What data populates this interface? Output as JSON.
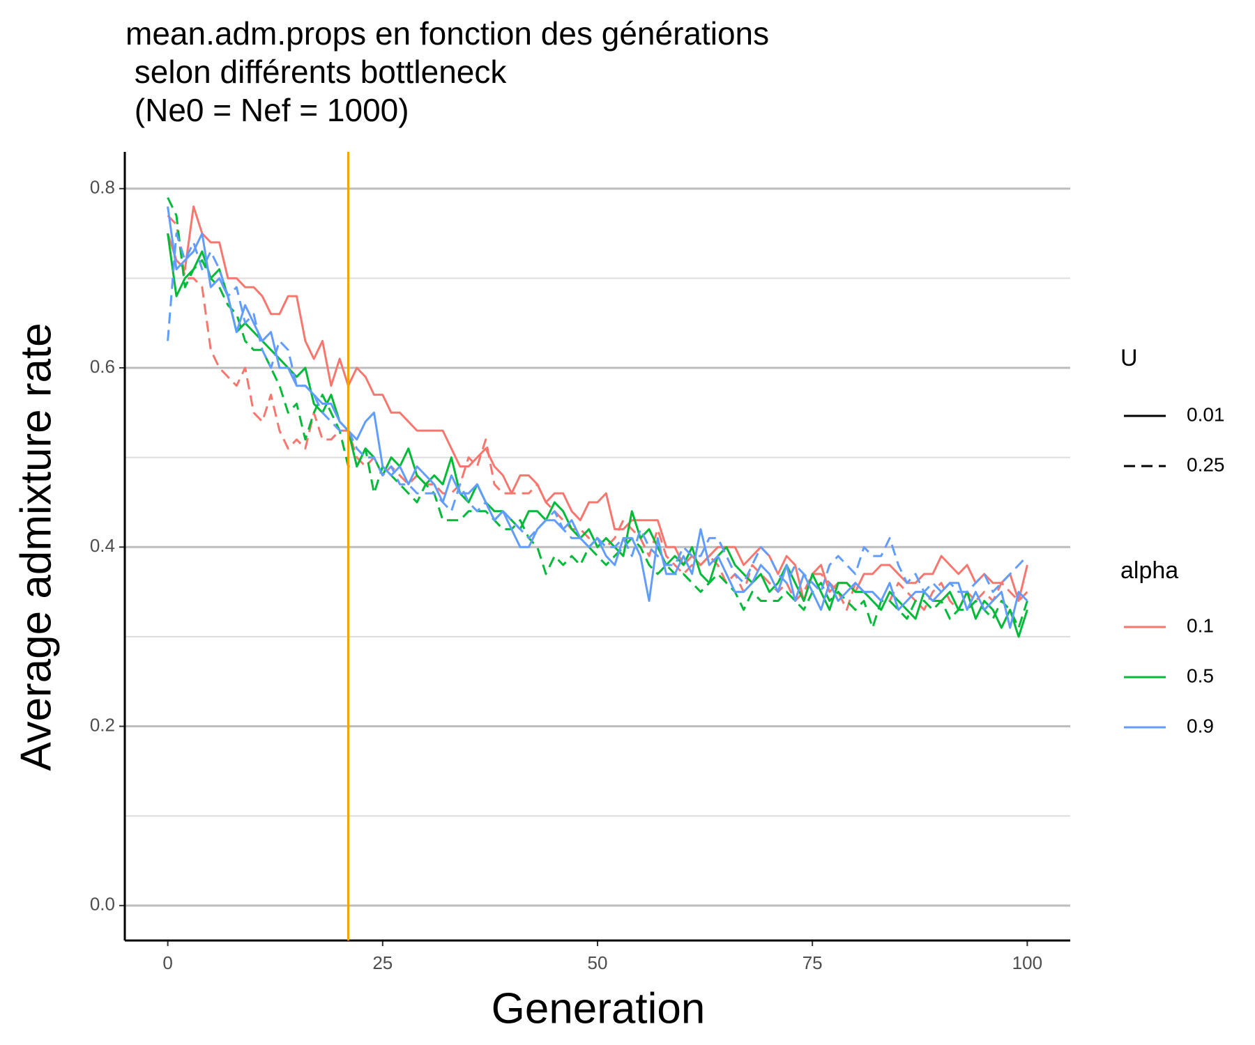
{
  "chart_data": {
    "type": "line",
    "title": [
      "mean.adm.props en fonction des générations",
      " selon différents bottleneck",
      " (Ne0 = Nef = 1000)"
    ],
    "x_label": "Generation",
    "y_label": "Average admixture rate",
    "xlim": [
      -5,
      105
    ],
    "xticks": [
      0,
      25,
      50,
      75,
      100
    ],
    "ylim": [
      -0.039,
      0.841
    ],
    "yticks": [
      {
        "value": 0,
        "label": "0.0"
      },
      0.2,
      0.4,
      0.6,
      0.8
    ],
    "yminor": [
      0.1,
      0.3,
      0.5,
      0.7
    ],
    "grid": true,
    "vline": 21,
    "vline_color": "#f5a300",
    "legend": [
      {
        "title": "U",
        "items": [
          "0.01",
          "0.25"
        ],
        "dashed": [
          false,
          true
        ],
        "color": "#000000"
      },
      {
        "title": "alpha",
        "items": [
          "0.1",
          "0.5",
          "0.9"
        ],
        "colors": [
          "#F8766D",
          "#00BA38",
          "#619CFF"
        ]
      }
    ],
    "x": [
      0,
      1,
      2,
      3,
      4,
      5,
      6,
      7,
      8,
      9,
      10,
      11,
      12,
      13,
      14,
      15,
      16,
      17,
      18,
      19,
      20,
      21,
      22,
      23,
      24,
      25,
      26,
      27,
      28,
      29,
      30,
      31,
      32,
      33,
      34,
      35,
      36,
      37,
      38,
      39,
      40,
      41,
      42,
      43,
      44,
      45,
      46,
      47,
      48,
      49,
      50,
      51,
      52,
      53,
      54,
      55,
      56,
      57,
      58,
      59,
      60,
      61,
      62,
      63,
      64,
      65,
      66,
      67,
      68,
      69,
      70,
      71,
      72,
      73,
      74,
      75,
      76,
      77,
      78,
      79,
      80,
      81,
      82,
      83,
      84,
      85,
      86,
      87,
      88,
      89,
      90,
      91,
      92,
      93,
      94,
      95,
      96,
      97,
      98,
      99,
      100
    ],
    "series": [
      {
        "color": "#F8766D",
        "dashed": false,
        "values": [
          0.75,
          0.72,
          0.71,
          0.78,
          0.75,
          0.74,
          0.74,
          0.7,
          0.7,
          0.69,
          0.69,
          0.68,
          0.66,
          0.66,
          0.68,
          0.68,
          0.63,
          0.61,
          0.63,
          0.58,
          0.61,
          0.58,
          0.6,
          0.59,
          0.57,
          0.57,
          0.55,
          0.55,
          0.54,
          0.53,
          0.53,
          0.53,
          0.53,
          0.51,
          0.49,
          0.49,
          0.5,
          0.51,
          0.49,
          0.48,
          0.46,
          0.48,
          0.48,
          0.47,
          0.45,
          0.46,
          0.46,
          0.44,
          0.43,
          0.45,
          0.45,
          0.46,
          0.42,
          0.42,
          0.43,
          0.43,
          0.43,
          0.43,
          0.4,
          0.4,
          0.38,
          0.39,
          0.38,
          0.39,
          0.4,
          0.4,
          0.4,
          0.38,
          0.39,
          0.4,
          0.39,
          0.37,
          0.39,
          0.38,
          0.34,
          0.37,
          0.38,
          0.35,
          0.36,
          0.36,
          0.35,
          0.37,
          0.37,
          0.38,
          0.38,
          0.37,
          0.36,
          0.36,
          0.37,
          0.37,
          0.39,
          0.38,
          0.37,
          0.38,
          0.36,
          0.37,
          0.36,
          0.36,
          0.37,
          0.34,
          0.38
        ]
      },
      {
        "color": "#F8766D",
        "dashed": true,
        "values": [
          0.77,
          0.76,
          0.7,
          0.7,
          0.69,
          0.62,
          0.6,
          0.59,
          0.58,
          0.6,
          0.55,
          0.54,
          0.57,
          0.53,
          0.51,
          0.52,
          0.51,
          0.55,
          0.52,
          0.52,
          0.53,
          0.53,
          0.5,
          0.49,
          0.5,
          0.48,
          0.49,
          0.48,
          0.47,
          0.48,
          0.47,
          0.47,
          0.46,
          0.46,
          0.47,
          0.5,
          0.49,
          0.52,
          0.47,
          0.46,
          0.46,
          0.46,
          0.46,
          0.47,
          0.45,
          0.44,
          0.43,
          0.42,
          0.42,
          0.41,
          0.41,
          0.4,
          0.41,
          0.43,
          0.42,
          0.41,
          0.39,
          0.42,
          0.39,
          0.38,
          0.37,
          0.38,
          0.38,
          0.39,
          0.38,
          0.36,
          0.37,
          0.35,
          0.38,
          0.37,
          0.36,
          0.35,
          0.36,
          0.34,
          0.35,
          0.37,
          0.37,
          0.36,
          0.35,
          0.33,
          0.36,
          0.35,
          0.35,
          0.34,
          0.34,
          0.36,
          0.35,
          0.34,
          0.33,
          0.35,
          0.36,
          0.34,
          0.33,
          0.35,
          0.34,
          0.35,
          0.34,
          0.36,
          0.35,
          0.34,
          0.35
        ]
      },
      {
        "color": "#00BA38",
        "dashed": false,
        "values": [
          0.75,
          0.68,
          0.7,
          0.71,
          0.73,
          0.7,
          0.71,
          0.68,
          0.64,
          0.65,
          0.64,
          0.63,
          0.62,
          0.61,
          0.6,
          0.59,
          0.6,
          0.56,
          0.55,
          0.57,
          0.54,
          0.53,
          0.49,
          0.51,
          0.5,
          0.48,
          0.5,
          0.49,
          0.51,
          0.48,
          0.47,
          0.48,
          0.47,
          0.5,
          0.46,
          0.45,
          0.47,
          0.45,
          0.44,
          0.44,
          0.43,
          0.42,
          0.44,
          0.44,
          0.43,
          0.45,
          0.44,
          0.42,
          0.41,
          0.42,
          0.4,
          0.41,
          0.4,
          0.39,
          0.44,
          0.41,
          0.42,
          0.4,
          0.38,
          0.39,
          0.38,
          0.4,
          0.37,
          0.36,
          0.39,
          0.4,
          0.38,
          0.37,
          0.36,
          0.37,
          0.35,
          0.36,
          0.38,
          0.36,
          0.34,
          0.37,
          0.35,
          0.33,
          0.36,
          0.36,
          0.35,
          0.35,
          0.34,
          0.33,
          0.35,
          0.34,
          0.33,
          0.32,
          0.35,
          0.34,
          0.34,
          0.35,
          0.33,
          0.35,
          0.32,
          0.34,
          0.33,
          0.31,
          0.33,
          0.3,
          0.33
        ]
      },
      {
        "color": "#00BA38",
        "dashed": true,
        "values": [
          0.79,
          0.77,
          0.69,
          0.71,
          0.72,
          0.7,
          0.69,
          0.67,
          0.66,
          0.63,
          0.62,
          0.62,
          0.6,
          0.58,
          0.55,
          0.56,
          0.52,
          0.55,
          0.57,
          0.55,
          0.53,
          0.49,
          0.49,
          0.51,
          0.46,
          0.49,
          0.48,
          0.47,
          0.46,
          0.45,
          0.47,
          0.46,
          0.43,
          0.43,
          0.43,
          0.44,
          0.44,
          0.44,
          0.43,
          0.42,
          0.42,
          0.43,
          0.41,
          0.4,
          0.37,
          0.39,
          0.38,
          0.39,
          0.38,
          0.4,
          0.39,
          0.38,
          0.39,
          0.4,
          0.41,
          0.4,
          0.38,
          0.37,
          0.38,
          0.37,
          0.37,
          0.36,
          0.35,
          0.36,
          0.37,
          0.36,
          0.35,
          0.33,
          0.35,
          0.34,
          0.34,
          0.34,
          0.35,
          0.34,
          0.33,
          0.35,
          0.36,
          0.34,
          0.35,
          0.34,
          0.33,
          0.34,
          0.31,
          0.34,
          0.34,
          0.33,
          0.32,
          0.34,
          0.34,
          0.33,
          0.34,
          0.32,
          0.33,
          0.33,
          0.34,
          0.33,
          0.32,
          0.34,
          0.33,
          0.31,
          0.34
        ]
      },
      {
        "color": "#619CFF",
        "dashed": false,
        "values": [
          0.78,
          0.71,
          0.72,
          0.73,
          0.75,
          0.69,
          0.7,
          0.68,
          0.64,
          0.67,
          0.65,
          0.63,
          0.64,
          0.6,
          0.6,
          0.58,
          0.58,
          0.57,
          0.56,
          0.56,
          0.54,
          0.53,
          0.52,
          0.54,
          0.55,
          0.49,
          0.48,
          0.49,
          0.47,
          0.49,
          0.48,
          0.47,
          0.45,
          0.48,
          0.46,
          0.46,
          0.47,
          0.45,
          0.43,
          0.44,
          0.42,
          0.4,
          0.4,
          0.42,
          0.43,
          0.43,
          0.42,
          0.43,
          0.41,
          0.4,
          0.41,
          0.39,
          0.38,
          0.41,
          0.41,
          0.39,
          0.34,
          0.41,
          0.37,
          0.37,
          0.39,
          0.37,
          0.42,
          0.38,
          0.39,
          0.37,
          0.35,
          0.35,
          0.36,
          0.38,
          0.37,
          0.35,
          0.38,
          0.34,
          0.37,
          0.35,
          0.33,
          0.36,
          0.34,
          0.35,
          0.36,
          0.35,
          0.35,
          0.34,
          0.36,
          0.33,
          0.34,
          0.35,
          0.35,
          0.34,
          0.35,
          0.36,
          0.36,
          0.33,
          0.35,
          0.33,
          0.34,
          0.35,
          0.31,
          0.35,
          0.34
        ]
      },
      {
        "color": "#619CFF",
        "dashed": true,
        "values": [
          0.63,
          0.75,
          0.72,
          0.74,
          0.71,
          0.73,
          0.71,
          0.68,
          0.69,
          0.65,
          0.66,
          0.62,
          0.6,
          0.63,
          0.62,
          0.58,
          0.58,
          0.57,
          0.55,
          0.54,
          0.53,
          0.53,
          0.51,
          0.5,
          0.5,
          0.48,
          0.49,
          0.47,
          0.47,
          0.46,
          0.46,
          0.46,
          0.45,
          0.44,
          0.47,
          0.45,
          0.44,
          0.45,
          0.43,
          0.44,
          0.43,
          0.42,
          0.41,
          0.42,
          0.43,
          0.44,
          0.42,
          0.41,
          0.41,
          0.4,
          0.41,
          0.4,
          0.4,
          0.41,
          0.39,
          0.42,
          0.4,
          0.39,
          0.38,
          0.38,
          0.4,
          0.39,
          0.39,
          0.41,
          0.41,
          0.39,
          0.37,
          0.36,
          0.38,
          0.4,
          0.39,
          0.37,
          0.36,
          0.38,
          0.37,
          0.36,
          0.35,
          0.38,
          0.39,
          0.38,
          0.37,
          0.4,
          0.39,
          0.39,
          0.41,
          0.38,
          0.36,
          0.37,
          0.35,
          0.36,
          0.35,
          0.36,
          0.35,
          0.35,
          0.36,
          0.37,
          0.35,
          0.36,
          0.37,
          0.38,
          0.39
        ]
      }
    ]
  }
}
